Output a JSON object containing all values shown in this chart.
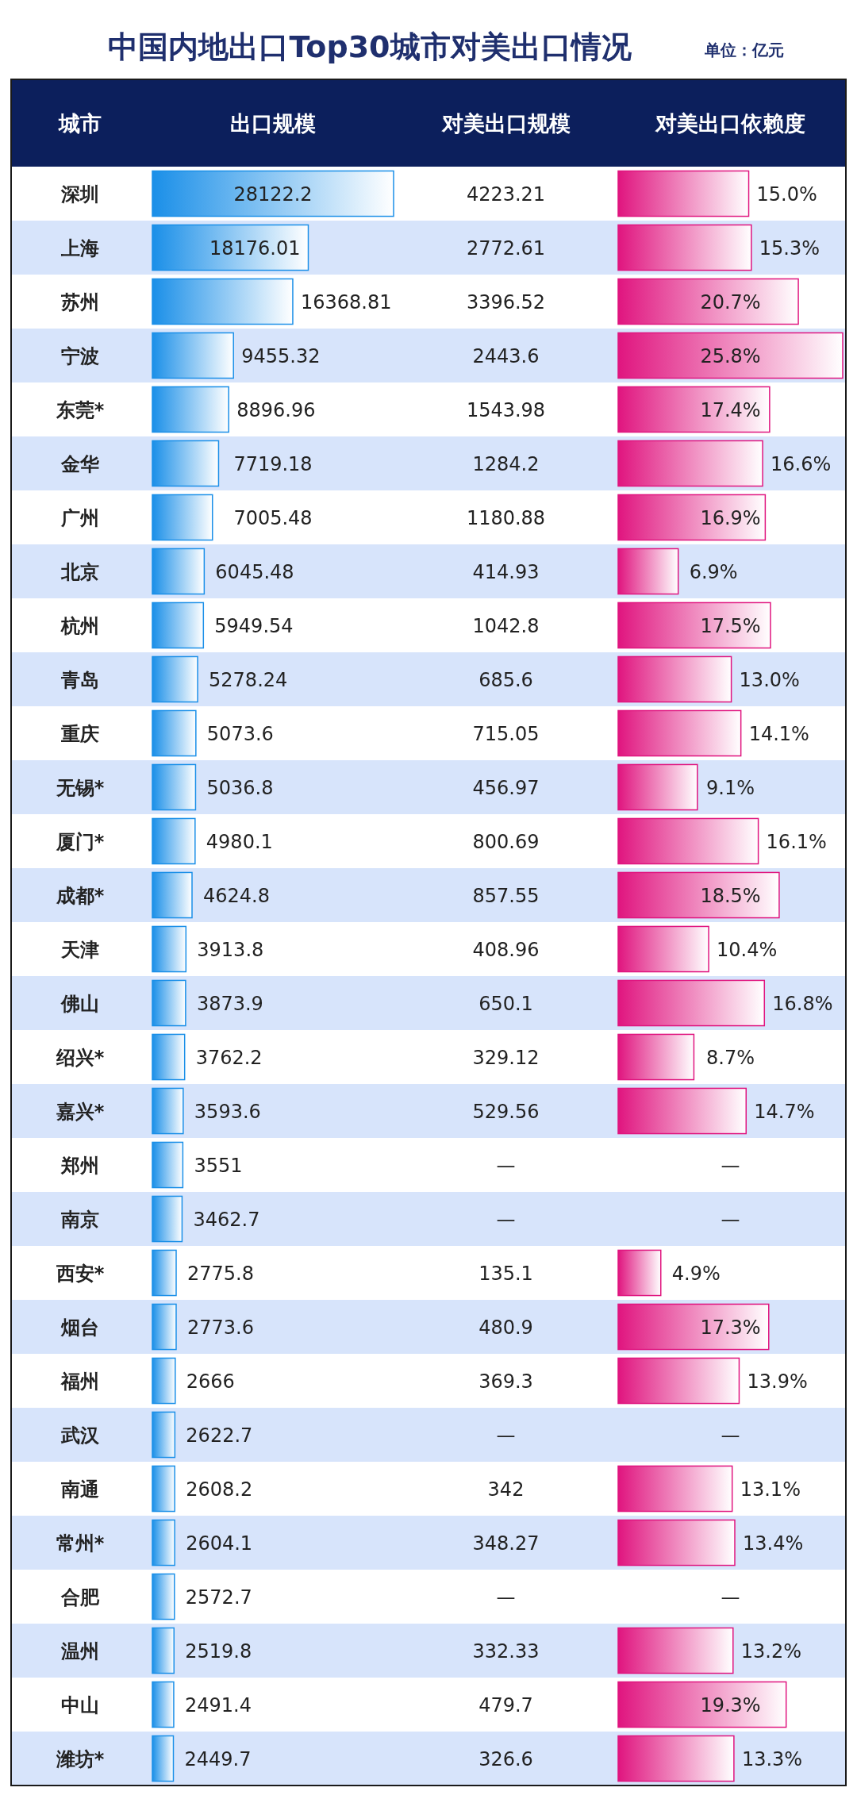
{
  "chart_data": [
    {
      "type": "bar",
      "orientation": "horizontal",
      "title": "中国内地出口Top30城市对美出口情况",
      "annotations": [
        "单位：亿元"
      ],
      "ylabel": "城市",
      "xlabel": "出口规模",
      "color": "#1a8fe8",
      "data_labels": true,
      "categories": [
        "深圳",
        "上海",
        "苏州",
        "宁波",
        "东莞*",
        "金华",
        "广州",
        "北京",
        "杭州",
        "青岛",
        "重庆",
        "无锡*",
        "厦门*",
        "成都*",
        "天津",
        "佛山",
        "绍兴*",
        "嘉兴*",
        "郑州",
        "南京",
        "西安*",
        "烟台",
        "福州",
        "武汉",
        "南通",
        "常州*",
        "合肥",
        "温州",
        "中山",
        "潍坊*"
      ],
      "values": [
        28122.2,
        18176.01,
        16368.81,
        9455.32,
        8896.96,
        7719.18,
        7005.48,
        6045.48,
        5949.54,
        5278.24,
        5073.6,
        5036.8,
        4980.1,
        4624.8,
        3913.8,
        3873.9,
        3762.2,
        3593.6,
        3551,
        3462.7,
        2775.8,
        2773.6,
        2666,
        2622.7,
        2608.2,
        2604.1,
        2572.7,
        2519.8,
        2491.4,
        2449.7
      ]
    },
    {
      "type": "other",
      "xlabel": "对美出口规模",
      "categories": [
        null,
        null,
        null,
        null,
        null,
        null,
        null,
        null,
        null,
        null,
        null,
        null,
        null,
        null,
        null,
        null,
        null,
        null,
        null,
        null,
        null,
        null,
        null,
        null,
        null,
        null,
        null,
        null,
        null,
        null
      ],
      "values": [
        4223.21,
        2772.61,
        3396.52,
        2443.6,
        1543.98,
        1284.2,
        1180.88,
        414.93,
        1042.8,
        685.6,
        715.05,
        456.97,
        800.69,
        857.55,
        408.96,
        650.1,
        329.12,
        529.56,
        null,
        null,
        135.1,
        480.9,
        369.3,
        null,
        342,
        348.27,
        null,
        332.33,
        479.7,
        326.6
      ],
      "value_labels": [
        "4223.21",
        "2772.61",
        "3396.52",
        "2443.6",
        "1543.98",
        "1284.2",
        "1180.88",
        "414.93",
        "1042.8",
        "685.6",
        "715.05",
        "456.97",
        "800.69",
        "857.55",
        "408.96",
        "650.1",
        "329.12",
        "529.56",
        "—",
        "—",
        "135.1",
        "480.9",
        "369.3",
        "—",
        "342",
        "348.27",
        "—",
        "332.33",
        "479.7",
        "326.6"
      ]
    },
    {
      "type": "bar",
      "orientation": "horizontal",
      "xlabel": "对美出口依赖度",
      "color": "#e0157f",
      "categories": [
        null,
        null,
        null,
        null,
        null,
        null,
        null,
        null,
        null,
        null,
        null,
        null,
        null,
        null,
        null,
        null,
        null,
        null,
        null,
        null,
        null,
        null,
        null,
        null,
        null,
        null,
        null,
        null,
        null,
        null
      ],
      "values": [
        15.0,
        15.3,
        20.7,
        25.8,
        17.4,
        16.6,
        16.9,
        6.9,
        17.5,
        13.0,
        14.1,
        9.1,
        16.1,
        18.5,
        10.4,
        16.8,
        8.7,
        14.7,
        null,
        null,
        4.9,
        17.3,
        13.9,
        null,
        13.1,
        13.4,
        null,
        13.2,
        19.3,
        13.3
      ],
      "value_labels": [
        "15.0%",
        "15.3%",
        "20.7%",
        "25.8%",
        "17.4%",
        "16.6%",
        "16.9%",
        "6.9%",
        "17.5%",
        "13.0%",
        "14.1%",
        "9.1%",
        "16.1%",
        "18.5%",
        "10.4%",
        "16.8%",
        "8.7%",
        "14.7%",
        "—",
        "—",
        "4.9%",
        "17.3%",
        "13.9%",
        "—",
        "13.1%",
        "13.4%",
        "—",
        "13.2%",
        "19.3%",
        "13.3%"
      ]
    }
  ]
}
